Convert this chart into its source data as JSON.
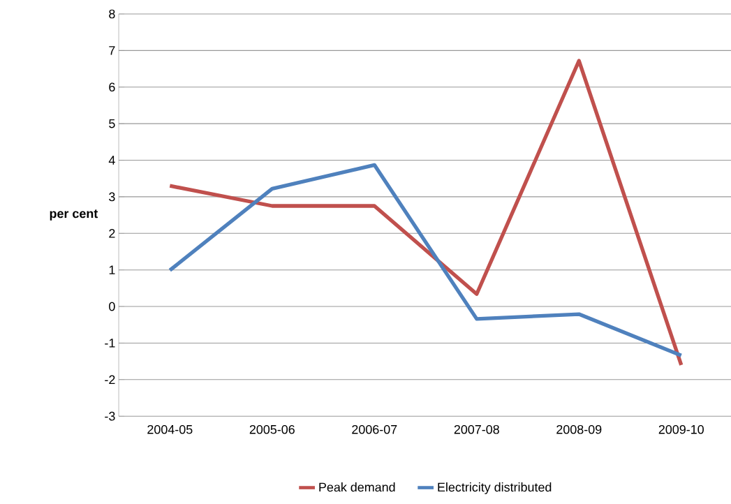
{
  "chart_data": {
    "type": "line",
    "ylabel": "per cent",
    "categories": [
      "2004-05",
      "2005-06",
      "2006-07",
      "2007-08",
      "2008-09",
      "2009-10"
    ],
    "series": [
      {
        "name": "Peak demand",
        "color": "#c0504d",
        "values": [
          3.3,
          2.75,
          2.75,
          0.34,
          6.72,
          -1.6
        ]
      },
      {
        "name": "Electricity distributed",
        "color": "#4f81bd",
        "values": [
          0.99,
          3.22,
          3.87,
          -0.34,
          -0.21,
          -1.34
        ]
      }
    ],
    "ylim": [
      -3,
      8
    ],
    "yticks": [
      -3,
      -2,
      -1,
      0,
      1,
      2,
      3,
      4,
      5,
      6,
      7,
      8
    ],
    "grid": "y",
    "legend": "bottom",
    "marker": "none",
    "line_style": "solid"
  }
}
